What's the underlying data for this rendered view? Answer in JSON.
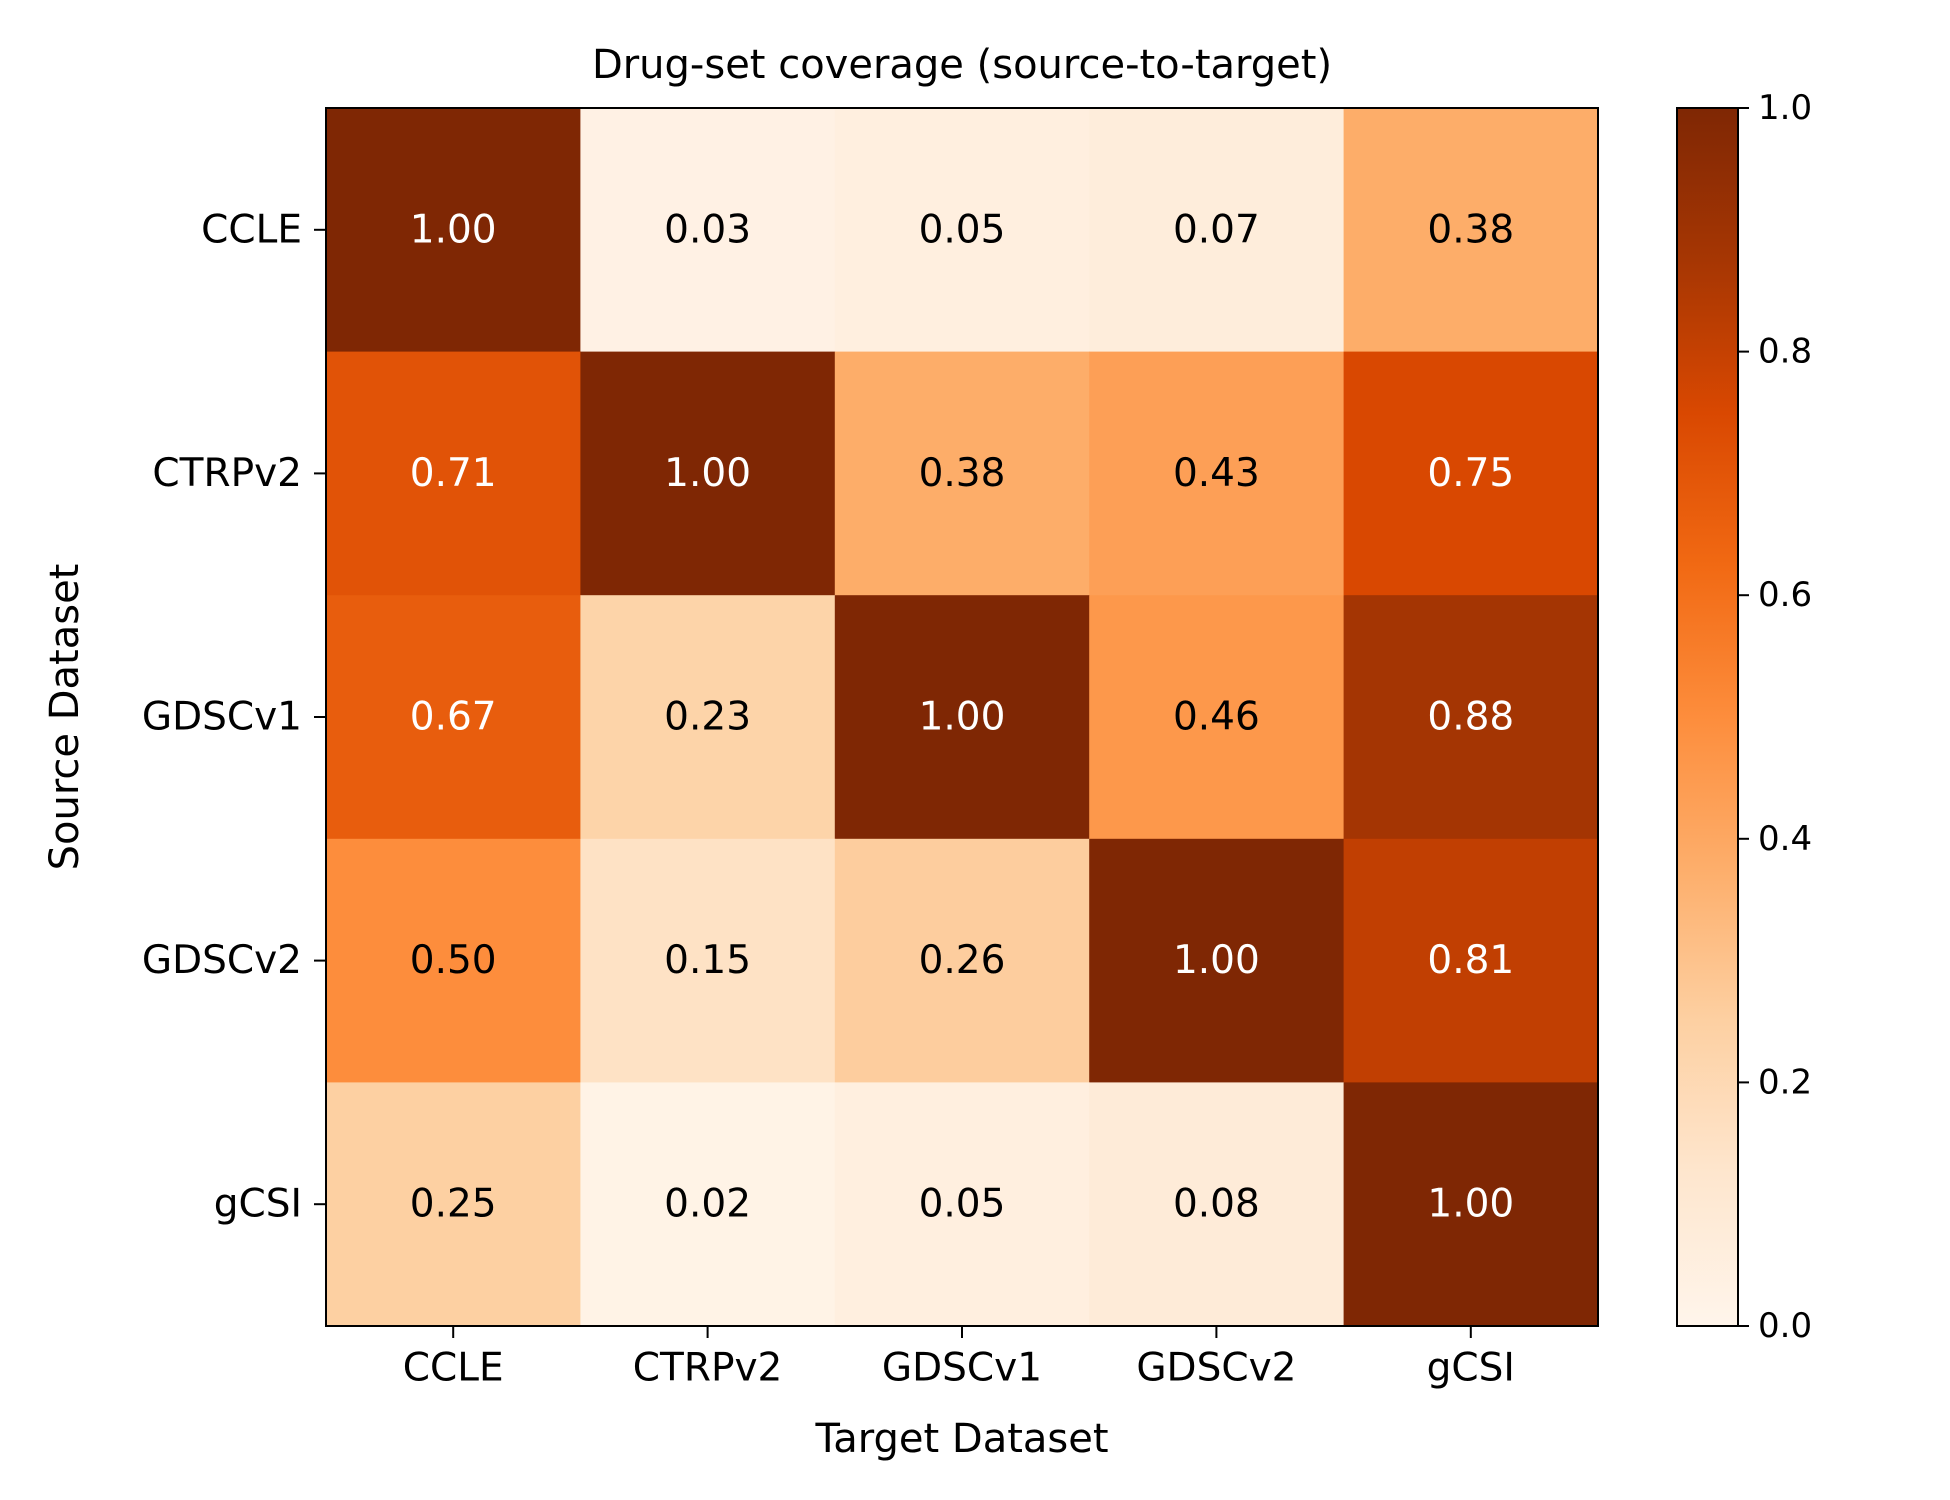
{
  "chart_data": {
    "type": "heatmap",
    "title": "Drug-set coverage (source-to-target)",
    "xlabel": "Target Dataset",
    "ylabel": "Source Dataset",
    "x_categories": [
      "CCLE",
      "CTRPv2",
      "GDSCv1",
      "GDSCv2",
      "gCSI"
    ],
    "y_categories": [
      "CCLE",
      "CTRPv2",
      "GDSCv1",
      "GDSCv2",
      "gCSI"
    ],
    "values": [
      [
        1.0,
        0.03,
        0.05,
        0.07,
        0.38
      ],
      [
        0.71,
        1.0,
        0.38,
        0.43,
        0.75
      ],
      [
        0.67,
        0.23,
        1.0,
        0.46,
        0.88
      ],
      [
        0.5,
        0.15,
        0.26,
        1.0,
        0.81
      ],
      [
        0.25,
        0.02,
        0.05,
        0.08,
        1.0
      ]
    ],
    "value_format": "2 decimals",
    "colormap": "Oranges",
    "colorbar": {
      "range": [
        0,
        1
      ],
      "ticks": [
        "0.0",
        "0.2",
        "0.4",
        "0.6",
        "0.8",
        "1.0"
      ]
    },
    "grid": false,
    "colors": {
      "colormap_stops": [
        "#fff5eb",
        "#fee6ce",
        "#fdd0a2",
        "#fdae6b",
        "#fd8d3c",
        "#f16913",
        "#d94801",
        "#a63603",
        "#7f2704"
      ],
      "light_text": "#ffffff",
      "dark_text": "#000000",
      "frame": "#000000"
    }
  }
}
